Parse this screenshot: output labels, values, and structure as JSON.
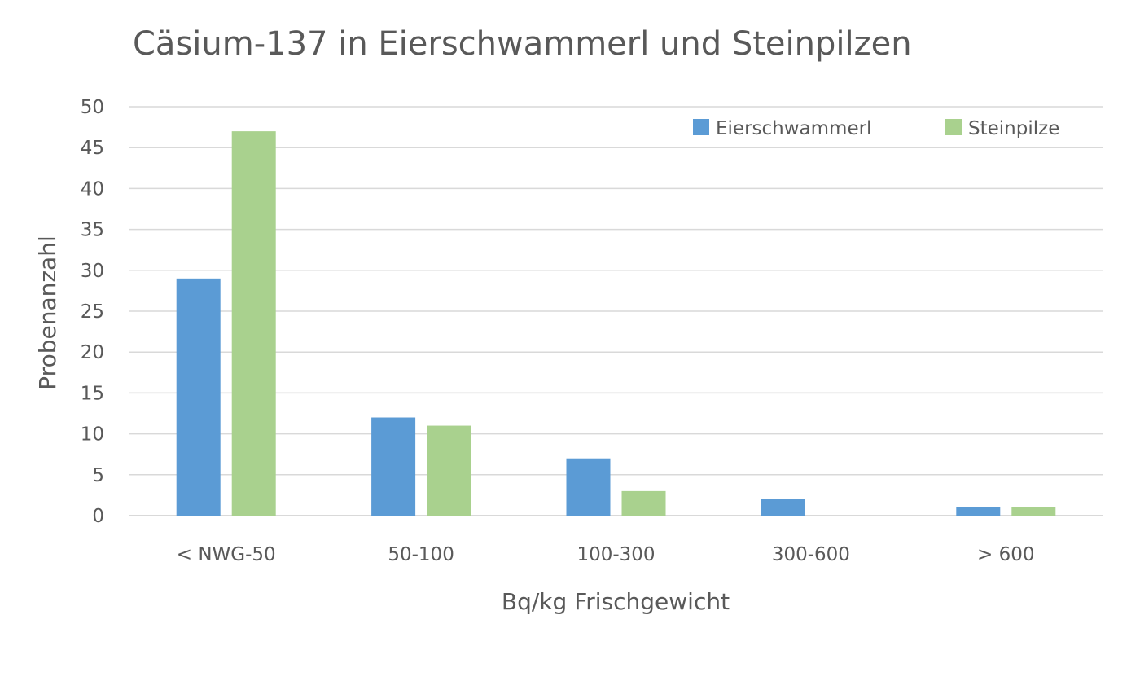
{
  "chart_data": {
    "type": "bar",
    "title": "Cäsium-137 in Eierschwammerl und Steinpilzen",
    "xlabel": "Bq/kg Frischgewicht",
    "ylabel": "Probenanzahl",
    "categories": [
      "< NWG-50",
      "50-100",
      "100-300",
      "300-600",
      "> 600"
    ],
    "series": [
      {
        "name": "Eierschwammerl",
        "color": "#5b9bd5",
        "values": [
          29,
          12,
          7,
          2,
          1
        ]
      },
      {
        "name": "Steinpilze",
        "color": "#a9d18e",
        "values": [
          47,
          11,
          3,
          0,
          1
        ]
      }
    ],
    "ylim": [
      0,
      50
    ],
    "yticks": [
      0,
      5,
      10,
      15,
      20,
      25,
      30,
      35,
      40,
      45,
      50
    ],
    "grid": true,
    "legend_position": "top-right"
  }
}
